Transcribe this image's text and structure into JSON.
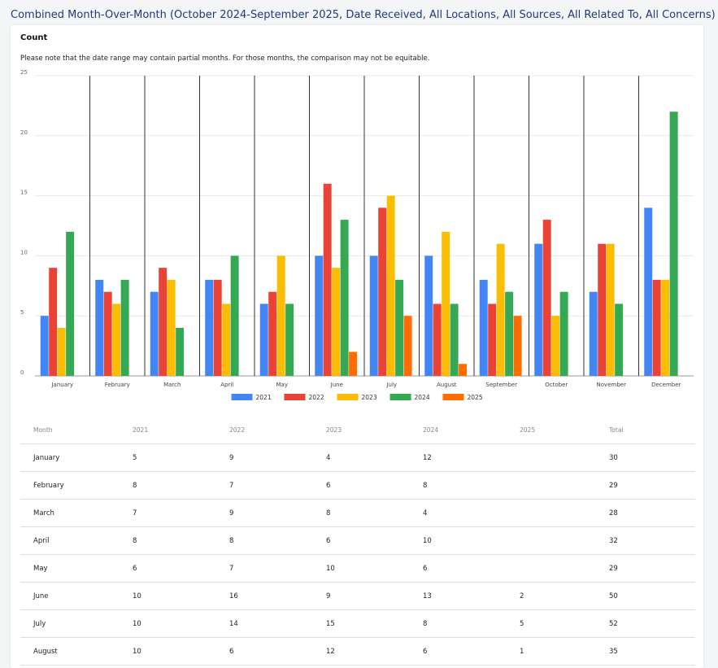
{
  "header": {
    "title": "Combined Month-Over-Month (October 2024-September 2025, Date Received, All Locations, All Sources, All Related To, All Concerns)"
  },
  "card": {
    "count_label": "Count",
    "note": "Please note that the date range may contain partial months. For those months, the comparison may not be equitable."
  },
  "chart_data": {
    "type": "bar",
    "categories": [
      "January",
      "February",
      "March",
      "April",
      "May",
      "June",
      "July",
      "August",
      "September",
      "October",
      "November",
      "December"
    ],
    "series": [
      {
        "name": "2021",
        "color": "#4285f4",
        "values": [
          5,
          8,
          7,
          8,
          6,
          10,
          10,
          10,
          8,
          11,
          7,
          14
        ]
      },
      {
        "name": "2022",
        "color": "#ea4335",
        "values": [
          9,
          7,
          9,
          8,
          7,
          16,
          14,
          6,
          6,
          13,
          11,
          8
        ]
      },
      {
        "name": "2023",
        "color": "#fbbc04",
        "values": [
          4,
          6,
          8,
          6,
          10,
          9,
          15,
          12,
          11,
          5,
          11,
          8
        ]
      },
      {
        "name": "2024",
        "color": "#34a853",
        "values": [
          12,
          8,
          4,
          10,
          6,
          13,
          8,
          6,
          7,
          7,
          6,
          22
        ]
      },
      {
        "name": "2025",
        "color": "#ff6d01",
        "values": [
          null,
          null,
          null,
          null,
          null,
          2,
          5,
          1,
          5,
          null,
          null,
          null
        ]
      }
    ],
    "ylim": [
      0,
      25
    ],
    "yticks": [
      0,
      5,
      10,
      15,
      20,
      25
    ],
    "grid": true,
    "legend_position": "bottom",
    "xlabel": "",
    "ylabel": ""
  },
  "table": {
    "headers": [
      "Month",
      "2021",
      "2022",
      "2023",
      "2024",
      "2025",
      "Total"
    ],
    "rows": [
      [
        "January",
        "5",
        "9",
        "4",
        "12",
        "",
        "30"
      ],
      [
        "February",
        "8",
        "7",
        "6",
        "8",
        "",
        "29"
      ],
      [
        "March",
        "7",
        "9",
        "8",
        "4",
        "",
        "28"
      ],
      [
        "April",
        "8",
        "8",
        "6",
        "10",
        "",
        "32"
      ],
      [
        "May",
        "6",
        "7",
        "10",
        "6",
        "",
        "29"
      ],
      [
        "June",
        "10",
        "16",
        "9",
        "13",
        "2",
        "50"
      ],
      [
        "July",
        "10",
        "14",
        "15",
        "8",
        "5",
        "52"
      ],
      [
        "August",
        "10",
        "6",
        "12",
        "6",
        "1",
        "35"
      ]
    ]
  }
}
